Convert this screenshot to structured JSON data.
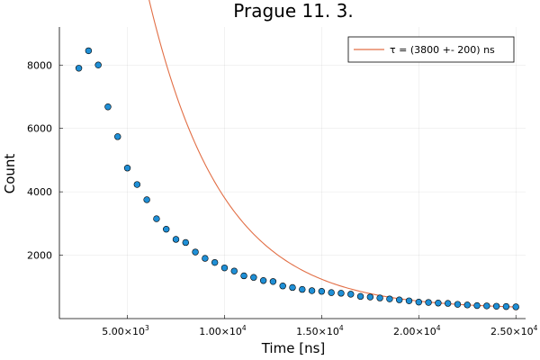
{
  "chart_data": {
    "type": "scatter",
    "title": "Prague 11. 3.",
    "xlabel": "Time [ns]",
    "ylabel": "Count",
    "xlim": [
      1500,
      25500
    ],
    "ylim": [
      0,
      9200
    ],
    "x_ticks": [
      {
        "value": 5000,
        "mantissa": "5.00×10",
        "exp": "3"
      },
      {
        "value": 10000,
        "mantissa": "1.00×10",
        "exp": "4"
      },
      {
        "value": 15000,
        "mantissa": "1.50×10",
        "exp": "4"
      },
      {
        "value": 20000,
        "mantissa": "2.00×10",
        "exp": "4"
      },
      {
        "value": 25000,
        "mantissa": "2.50×10",
        "exp": "4"
      }
    ],
    "y_ticks": [
      {
        "value": 2000,
        "label": "2000"
      },
      {
        "value": 4000,
        "label": "4000"
      },
      {
        "value": 6000,
        "label": "6000"
      },
      {
        "value": 8000,
        "label": "8000"
      }
    ],
    "grid": true,
    "legend_position": "top-right",
    "series": [
      {
        "kind": "scatter",
        "color": "#1f8fd6",
        "x": [
          2500,
          3000,
          3500,
          4000,
          4500,
          5000,
          5500,
          6000,
          6500,
          7000,
          7500,
          8000,
          8500,
          9000,
          9500,
          10000,
          10500,
          11000,
          11500,
          12000,
          12500,
          13000,
          13500,
          14000,
          14500,
          15000,
          15500,
          16000,
          16500,
          17000,
          17500,
          18000,
          18500,
          19000,
          19500,
          20000,
          20500,
          21000,
          21500,
          22000,
          22500,
          23000,
          23500,
          24000,
          24500,
          25000
        ],
        "y": [
          7900,
          8450,
          8000,
          6680,
          5740,
          4750,
          4230,
          3750,
          3150,
          2820,
          2500,
          2400,
          2100,
          1900,
          1770,
          1600,
          1500,
          1350,
          1300,
          1200,
          1170,
          1030,
          980,
          920,
          880,
          860,
          820,
          800,
          770,
          700,
          680,
          650,
          620,
          590,
          560,
          520,
          510,
          490,
          480,
          450,
          430,
          410,
          400,
          390,
          380,
          370
        ]
      },
      {
        "kind": "line",
        "name": "τ = (3800 +- 200) ns",
        "color": "#e26f46",
        "model": {
          "amplitude": 48800,
          "tau": 3800,
          "offset": 300
        },
        "x_range": [
          2500,
          25000
        ]
      }
    ]
  }
}
